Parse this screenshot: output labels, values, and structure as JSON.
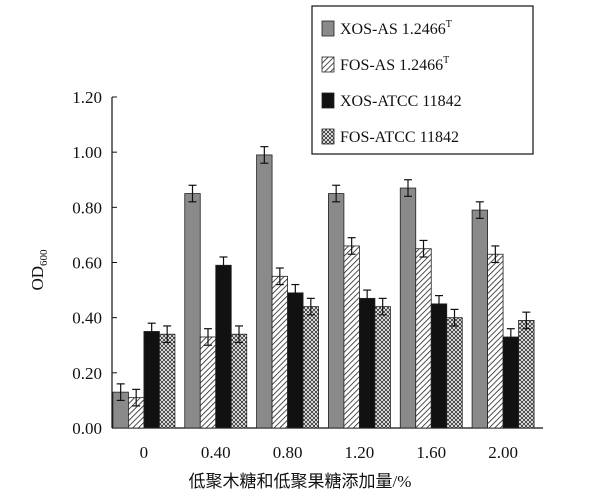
{
  "chart_data": {
    "type": "bar",
    "xlabel": "低聚木糖和低聚果糖添加量/%",
    "ylabel": "OD",
    "ylabel_sub": "600",
    "ylim": [
      0,
      1.2
    ],
    "yticks": [
      "0.00",
      "0.20",
      "0.40",
      "0.60",
      "0.80",
      "1.00",
      "1.20"
    ],
    "categories": [
      "0",
      "0.40",
      "0.80",
      "1.20",
      "1.60",
      "2.00"
    ],
    "legend_position": "top-right",
    "series": [
      {
        "name": "XOS-AS 1.2466",
        "name_sup": "T",
        "fill": "gray",
        "values": [
          0.13,
          0.85,
          0.99,
          0.85,
          0.87,
          0.79
        ],
        "errors": [
          0.03,
          0.03,
          0.03,
          0.03,
          0.03,
          0.03
        ]
      },
      {
        "name": "FOS-AS 1.2466",
        "name_sup": "T",
        "fill": "hatch-diagonal",
        "values": [
          0.11,
          0.33,
          0.55,
          0.66,
          0.65,
          0.63
        ],
        "errors": [
          0.03,
          0.03,
          0.03,
          0.03,
          0.03,
          0.03
        ]
      },
      {
        "name": "XOS-ATCC 11842",
        "fill": "black",
        "values": [
          0.35,
          0.59,
          0.49,
          0.47,
          0.45,
          0.33
        ],
        "errors": [
          0.03,
          0.03,
          0.03,
          0.03,
          0.03,
          0.03
        ]
      },
      {
        "name": "FOS-ATCC 11842",
        "fill": "hatch-cross",
        "values": [
          0.34,
          0.34,
          0.44,
          0.44,
          0.4,
          0.39
        ],
        "errors": [
          0.03,
          0.03,
          0.03,
          0.03,
          0.03,
          0.03
        ]
      }
    ],
    "colors": {
      "gray": "#8a8a8a",
      "black": "#111111",
      "axis": "#111111"
    }
  }
}
